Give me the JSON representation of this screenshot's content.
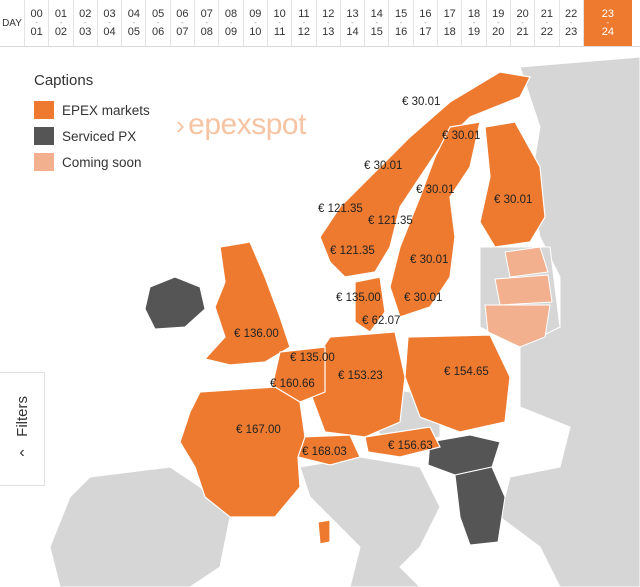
{
  "hourbar": {
    "day_label": "DAY",
    "hours": [
      {
        "from": "00",
        "to": "01"
      },
      {
        "from": "01",
        "to": "02"
      },
      {
        "from": "02",
        "to": "03"
      },
      {
        "from": "03",
        "to": "04"
      },
      {
        "from": "04",
        "to": "05"
      },
      {
        "from": "05",
        "to": "06"
      },
      {
        "from": "06",
        "to": "07"
      },
      {
        "from": "07",
        "to": "08"
      },
      {
        "from": "08",
        "to": "09"
      },
      {
        "from": "09",
        "to": "10"
      },
      {
        "from": "10",
        "to": "11"
      },
      {
        "from": "11",
        "to": "12"
      },
      {
        "from": "12",
        "to": "13"
      },
      {
        "from": "13",
        "to": "14"
      },
      {
        "from": "14",
        "to": "15"
      },
      {
        "from": "15",
        "to": "16"
      },
      {
        "from": "16",
        "to": "17"
      },
      {
        "from": "17",
        "to": "18"
      },
      {
        "from": "18",
        "to": "19"
      },
      {
        "from": "19",
        "to": "20"
      },
      {
        "from": "20",
        "to": "21"
      },
      {
        "from": "21",
        "to": "22"
      },
      {
        "from": "22",
        "to": "23"
      },
      {
        "from": "23",
        "to": "24"
      }
    ],
    "active_index": 23
  },
  "legend": {
    "title": "Captions",
    "items": [
      {
        "label": "EPEX markets",
        "color": "#ee7a30"
      },
      {
        "label": "Serviced PX",
        "color": "#555555"
      },
      {
        "label": "Coming soon",
        "color": "#f2b08e"
      }
    ]
  },
  "brand": "epexspot",
  "filters": {
    "label": "Filters",
    "icon": "chevron-left-icon"
  },
  "colors": {
    "market": "#ee7a30",
    "serviced": "#555555",
    "soon": "#f2b08e",
    "land": "#d6d6d6",
    "sea": "#ffffff",
    "border": "#ffffff"
  },
  "prices": [
    {
      "text": "€ 30.01"
    },
    {
      "text": "€ 30.01"
    },
    {
      "text": "€ 30.01"
    },
    {
      "text": "€ 30.01"
    },
    {
      "text": "€ 30.01"
    },
    {
      "text": "€ 121.35"
    },
    {
      "text": "€ 121.35"
    },
    {
      "text": "€ 121.35"
    },
    {
      "text": "€ 30.01"
    },
    {
      "text": "€ 135.00"
    },
    {
      "text": "€ 30.01"
    },
    {
      "text": "€ 62.07"
    },
    {
      "text": "€ 136.00"
    },
    {
      "text": "€ 135.00"
    },
    {
      "text": "€ 160.66"
    },
    {
      "text": "€ 153.23"
    },
    {
      "text": "€ 154.65"
    },
    {
      "text": "€ 167.00"
    },
    {
      "text": "€ 156.63"
    },
    {
      "text": "€ 168.03"
    }
  ]
}
